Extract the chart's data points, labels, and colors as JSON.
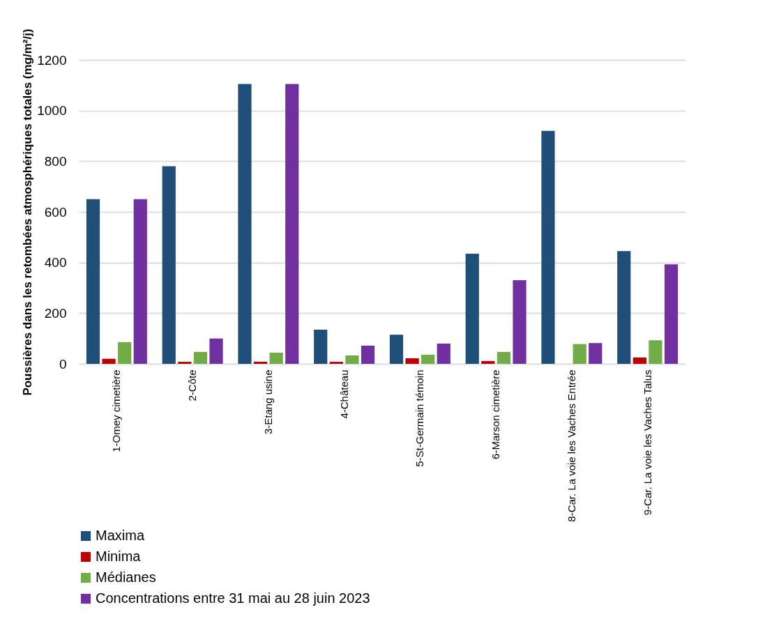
{
  "chart_data": {
    "type": "bar",
    "ylabel": "Poussières dans les retombées atmosphériques totales (mg/m²/j)",
    "categories": [
      "1-Omey cimetière",
      "2-Côte",
      "3-Etang usine",
      "4-Château",
      "5-St-Germain témoin",
      "6-Marson cimetière",
      "8-Car. La voie les Vaches Entrée",
      "9-Car. La voie les Vaches Talus"
    ],
    "series": [
      {
        "name": "Maxima",
        "color": "#1f4e79",
        "values": [
          650,
          780,
          1105,
          135,
          115,
          435,
          920,
          445
        ]
      },
      {
        "name": "Minima",
        "color": "#c00000",
        "values": [
          20,
          8,
          8,
          8,
          22,
          11,
          null,
          25
        ]
      },
      {
        "name": "Médianes",
        "color": "#70ad47",
        "values": [
          85,
          47,
          44,
          33,
          36,
          47,
          78,
          93
        ]
      },
      {
        "name": "Concentrations entre 31 mai au 28 juin 2023",
        "color": "#7030a0",
        "values": [
          650,
          100,
          1105,
          72,
          80,
          330,
          82,
          393
        ]
      }
    ],
    "ylim": [
      0,
      1200
    ],
    "yticks": [
      0,
      200,
      400,
      600,
      800,
      1000,
      1200
    ],
    "grid": "y",
    "legend": "bottom left"
  }
}
